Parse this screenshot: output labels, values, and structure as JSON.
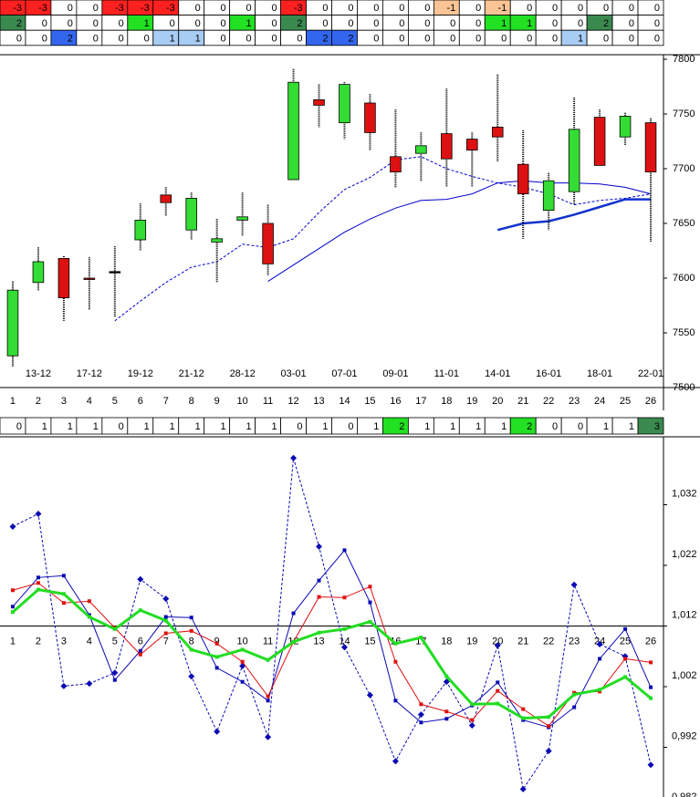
{
  "signal_table": {
    "rows": [
      [
        -3,
        -3,
        0,
        0,
        -3,
        -3,
        -3,
        0,
        0,
        0,
        0,
        -3,
        0,
        0,
        0,
        0,
        0,
        -1,
        0,
        -1,
        0,
        0,
        0,
        0,
        0,
        0
      ],
      [
        2,
        0,
        0,
        0,
        0,
        1,
        0,
        0,
        0,
        1,
        0,
        2,
        0,
        0,
        0,
        0,
        0,
        0,
        0,
        1,
        1,
        0,
        0,
        2,
        0,
        0
      ],
      [
        0,
        0,
        2,
        0,
        0,
        0,
        1,
        1,
        0,
        0,
        0,
        0,
        2,
        2,
        0,
        0,
        0,
        0,
        0,
        0,
        0,
        0,
        1,
        0,
        0,
        0
      ]
    ],
    "cell_colors": [
      {
        "-3": "#ff2020",
        "-1": "#fcc494"
      },
      {
        "1": "#22e022",
        "2": "#3a8a50"
      },
      {
        "1": "#a8cdf4",
        "2": "#3366ee"
      }
    ]
  },
  "count_row": {
    "values": [
      0,
      1,
      1,
      1,
      0,
      1,
      1,
      1,
      1,
      1,
      1,
      0,
      1,
      0,
      1,
      2,
      1,
      1,
      1,
      1,
      2,
      0,
      0,
      1,
      1,
      3
    ],
    "cell_colors": {
      "2": "#22e022",
      "3": "#3a8a50"
    }
  },
  "chart_data": [
    {
      "type": "candlestick",
      "categories": [
        1,
        2,
        3,
        4,
        5,
        6,
        7,
        8,
        9,
        10,
        11,
        12,
        13,
        14,
        15,
        16,
        17,
        18,
        19,
        20,
        21,
        22,
        23,
        24,
        25,
        26
      ],
      "dates": [
        null,
        "13-12",
        null,
        "17-12",
        null,
        "19-12",
        null,
        "21-12",
        null,
        "28-12",
        null,
        "03-01",
        null,
        "07-01",
        null,
        "09-01",
        null,
        "11-01",
        null,
        "14-01",
        null,
        "16-01",
        null,
        "18-01",
        null,
        "22-01"
      ],
      "open": [
        7529,
        7596,
        7618,
        7600,
        7606,
        7635,
        7676,
        7644,
        7633,
        7653,
        7650,
        7690,
        7763,
        7742,
        7760,
        7711,
        7714,
        7732,
        7727,
        7738,
        7704,
        7662,
        7679,
        7747,
        7729,
        7742
      ],
      "close": [
        7589,
        7615,
        7582,
        7599,
        7606,
        7653,
        7669,
        7673,
        7636,
        7656,
        7613,
        7779,
        7758,
        7777,
        7733,
        7697,
        7721,
        7709,
        7717,
        7729,
        7677,
        7689,
        7736,
        7703,
        7748,
        7697
      ],
      "high": [
        7597,
        7628,
        7620,
        7619,
        7629,
        7668,
        7683,
        7678,
        7654,
        7678,
        7667,
        7791,
        7777,
        7779,
        7768,
        7754,
        7733,
        7773,
        7733,
        7786,
        7735,
        7696,
        7765,
        7754,
        7751,
        7746
      ],
      "low": [
        7519,
        7589,
        7561,
        7571,
        7564,
        7625,
        7657,
        7635,
        7596,
        7639,
        7602,
        7690,
        7738,
        7727,
        7717,
        7683,
        7688,
        7683,
        7683,
        7706,
        7636,
        7644,
        7667,
        7703,
        7721,
        7633
      ],
      "up_color": "#33dd33",
      "down_color": "#dd1111",
      "flat_color": "#000000",
      "overlays": [
        {
          "color": "#0000cc",
          "dashed": true,
          "width": 1,
          "values": [
            null,
            null,
            null,
            null,
            7561,
            7579,
            7596,
            7610,
            7615,
            7631,
            7628,
            7636,
            7660,
            7681,
            7692,
            7708,
            7711,
            7700,
            7693,
            7687,
            7683,
            7677,
            7667,
            7671,
            7673,
            7677
          ]
        },
        {
          "color": "#0000cc",
          "dashed": false,
          "width": 1,
          "values": [
            null,
            null,
            null,
            null,
            null,
            null,
            null,
            null,
            null,
            null,
            7597,
            7612,
            7627,
            7642,
            7654,
            7664,
            7671,
            7672,
            7677,
            7687,
            7689,
            7687,
            7687,
            7686,
            7683,
            7677
          ]
        },
        {
          "color": "#1133cc",
          "dashed": false,
          "width": 2.5,
          "values": [
            null,
            null,
            null,
            null,
            null,
            null,
            null,
            null,
            null,
            null,
            null,
            null,
            null,
            null,
            null,
            null,
            null,
            null,
            null,
            7644,
            7650,
            7652,
            7658,
            7665,
            7672,
            7672
          ]
        }
      ],
      "ylim": [
        7500,
        7800
      ],
      "yticks": [
        7500,
        7550,
        7600,
        7650,
        7700,
        7750,
        7800
      ]
    },
    {
      "type": "line",
      "categories": [
        1,
        2,
        3,
        4,
        5,
        6,
        7,
        8,
        9,
        10,
        11,
        12,
        13,
        14,
        15,
        16,
        17,
        18,
        19,
        20,
        21,
        22,
        23,
        24,
        25,
        26
      ],
      "series": [
        {
          "color": "#0a0ab4",
          "dashed": true,
          "marker": "diamond",
          "width": 1,
          "values": [
            1.0284,
            1.0305,
            1.0021,
            1.0025,
            1.0043,
            1.0197,
            1.0165,
            1.0037,
            0.9946,
            1.0054,
            0.9937,
            1.0397,
            1.0251,
            1.0085,
            1.0006,
            0.9897,
            0.9974,
            1.0028,
            0.9956,
            1.0088,
            0.9851,
            0.9914,
            1.0188,
            1.009,
            1.007,
            0.9891
          ]
        },
        {
          "color": "#0a0ab4",
          "dashed": false,
          "marker": "square",
          "width": 1,
          "values": [
            1.0152,
            1.02,
            1.0203,
            1.0138,
            1.0031,
            1.0079,
            1.0135,
            1.0134,
            1.0051,
            1.0028,
            0.9997,
            1.0141,
            1.0195,
            1.0245,
            1.0159,
            0.9997,
            0.9961,
            0.9967,
            0.9989,
            1.0027,
            0.9965,
            0.9953,
            0.9986,
            1.0066,
            1.0115,
            1.0019
          ]
        },
        {
          "color": "#e01010",
          "dashed": false,
          "marker": "square",
          "width": 1,
          "values": [
            1.0179,
            1.0191,
            1.0158,
            1.0161,
            1.0117,
            1.0073,
            1.0108,
            1.0112,
            1.0091,
            1.0061,
            1.0004,
            1.0094,
            1.0168,
            1.0167,
            1.0185,
            1.0061,
            0.9991,
            0.9979,
            0.9965,
            1.0013,
            0.9983,
            0.9955,
            1.001,
            1.0012,
            1.0066,
            1.006
          ]
        },
        {
          "color": "#22dd22",
          "dashed": false,
          "marker": "square",
          "width": 3,
          "values": [
            1.0143,
            1.018,
            1.0173,
            1.0135,
            1.0115,
            1.0146,
            1.0129,
            1.0081,
            1.0069,
            1.0081,
            1.0064,
            1.0094,
            1.0109,
            1.0115,
            1.0127,
            1.0091,
            1.0101,
            1.0037,
            0.9991,
            0.9992,
            0.9968,
            0.997,
            1.0007,
            1.0015,
            1.0036,
            1.0001
          ]
        }
      ],
      "x_axis_at": 1.012,
      "ylim": [
        0.982,
        1.04
      ],
      "yticks": [
        {
          "value": 0.982,
          "label": "0,982"
        },
        {
          "value": 0.992,
          "label": "0,992"
        },
        {
          "value": 1.002,
          "label": "1,002"
        },
        {
          "value": 1.012,
          "label": "1,012"
        },
        {
          "value": 1.022,
          "label": "1,022"
        },
        {
          "value": 1.032,
          "label": "1,032"
        }
      ]
    }
  ]
}
